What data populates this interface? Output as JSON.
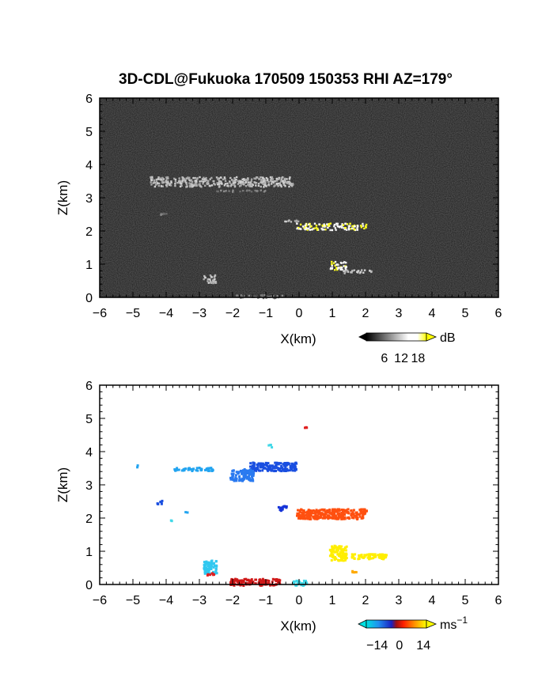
{
  "title": "3D-CDL@Fukuoka 170509 150353 RHI AZ=179°",
  "chart_data": [
    {
      "type": "heatmap",
      "name": "reflectivity",
      "xlabel": "X(km)",
      "ylabel": "Z(km)",
      "xlim": [
        -6,
        6
      ],
      "ylim": [
        0,
        6
      ],
      "xticks": [
        "-6",
        "-5",
        "-4",
        "-3",
        "-2",
        "-1",
        "0",
        "1",
        "2",
        "3",
        "4",
        "5",
        "6"
      ],
      "yticks": [
        "0",
        "1",
        "2",
        "3",
        "4",
        "5",
        "6"
      ],
      "colorbar": {
        "ticks": [
          "6",
          "12",
          "18"
        ],
        "unit": "dB",
        "colors": [
          "#000000",
          "#ffffff",
          "#ffff00"
        ]
      },
      "features": [
        {
          "x": [
            -4.5,
            -0.2
          ],
          "z": [
            3.35,
            3.65
          ],
          "level": "medium"
        },
        {
          "x": [
            -2.5,
            -1.0
          ],
          "z": [
            3.2,
            3.25
          ],
          "level": "low"
        },
        {
          "x": [
            -0.6,
            0.0
          ],
          "z": [
            2.3,
            2.35
          ],
          "level": "medium"
        },
        {
          "x": [
            -0.1,
            2.0
          ],
          "z": [
            2.05,
            2.25
          ],
          "level": "high"
        },
        {
          "x": [
            0.9,
            1.4
          ],
          "z": [
            0.85,
            1.1
          ],
          "level": "high"
        },
        {
          "x": [
            1.3,
            2.2
          ],
          "z": [
            0.75,
            0.85
          ],
          "level": "medium"
        },
        {
          "x": [
            -2.9,
            -2.5
          ],
          "z": [
            0.45,
            0.7
          ],
          "level": "medium"
        },
        {
          "x": [
            -1.9,
            -0.5
          ],
          "z": [
            0.0,
            0.1
          ],
          "level": "low"
        },
        {
          "x": [
            -4.2,
            -4.0
          ],
          "z": [
            2.5,
            2.55
          ],
          "level": "low"
        }
      ]
    },
    {
      "type": "scatter",
      "name": "doppler-velocity",
      "xlabel": "X(km)",
      "ylabel": "Z(km)",
      "xlim": [
        -6,
        6
      ],
      "ylim": [
        0,
        6
      ],
      "xticks": [
        "-6",
        "-5",
        "-4",
        "-3",
        "-2",
        "-1",
        "0",
        "1",
        "2",
        "3",
        "4",
        "5",
        "6"
      ],
      "yticks": [
        "0",
        "1",
        "2",
        "3",
        "4",
        "5",
        "6"
      ],
      "colorbar": {
        "ticks": [
          "−14",
          "0",
          "14"
        ],
        "unit": "ms",
        "unit_exp": "−1"
      },
      "clusters": [
        {
          "x": [
            -1.5,
            -0.1
          ],
          "z": [
            3.45,
            3.7
          ],
          "velocity": -11,
          "color": "#1a4fe0"
        },
        {
          "x": [
            -2.1,
            -1.4
          ],
          "z": [
            3.15,
            3.5
          ],
          "velocity": -9,
          "color": "#2a7af0"
        },
        {
          "x": [
            -3.8,
            -2.6
          ],
          "z": [
            3.45,
            3.55
          ],
          "velocity": -7,
          "color": "#22a4f0"
        },
        {
          "x": [
            -4.95,
            -4.9
          ],
          "z": [
            3.55,
            3.62
          ],
          "velocity": -7,
          "color": "#22a4f0"
        },
        {
          "x": [
            -0.65,
            -0.4
          ],
          "z": [
            2.25,
            2.4
          ],
          "velocity": -12,
          "color": "#1533d8"
        },
        {
          "x": [
            -4.3,
            -4.15
          ],
          "z": [
            2.45,
            2.55
          ],
          "velocity": -11,
          "color": "#1a4fe0"
        },
        {
          "x": [
            -3.9,
            -3.85
          ],
          "z": [
            1.95,
            2.0
          ],
          "velocity": -4,
          "color": "#40d8e8"
        },
        {
          "x": [
            -3.45,
            -3.4
          ],
          "z": [
            2.2,
            2.25
          ],
          "velocity": -7,
          "color": "#22a4f0"
        },
        {
          "x": [
            -0.95,
            -0.85
          ],
          "z": [
            4.15,
            4.25
          ],
          "velocity": -4,
          "color": "#40d8e8"
        },
        {
          "x": [
            0.1,
            0.2
          ],
          "z": [
            4.75,
            4.82
          ],
          "velocity": 4,
          "color": "#e02020"
        },
        {
          "x": [
            -0.1,
            2.0
          ],
          "z": [
            2.0,
            2.3
          ],
          "velocity": 8,
          "color": "#ff5010"
        },
        {
          "x": [
            0.9,
            1.4
          ],
          "z": [
            0.75,
            1.2
          ],
          "velocity": 14,
          "color": "#ffee00"
        },
        {
          "x": [
            1.5,
            2.6
          ],
          "z": [
            0.8,
            0.95
          ],
          "velocity": 14,
          "color": "#ffee00"
        },
        {
          "x": [
            1.55,
            1.7
          ],
          "z": [
            0.38,
            0.45
          ],
          "velocity": 11,
          "color": "#ffaa00"
        },
        {
          "x": [
            -2.9,
            -2.5
          ],
          "z": [
            0.35,
            0.75
          ],
          "velocity": -5,
          "color": "#30c8f0"
        },
        {
          "x": [
            -2.8,
            -2.55
          ],
          "z": [
            0.3,
            0.38
          ],
          "velocity": 4,
          "color": "#e02020"
        },
        {
          "x": [
            -2.1,
            -0.6
          ],
          "z": [
            0.0,
            0.2
          ],
          "velocity": 4,
          "color": "#d01818"
        },
        {
          "x": [
            -0.2,
            0.2
          ],
          "z": [
            0.0,
            0.15
          ],
          "velocity": -3,
          "color": "#40d8e8"
        }
      ]
    }
  ]
}
